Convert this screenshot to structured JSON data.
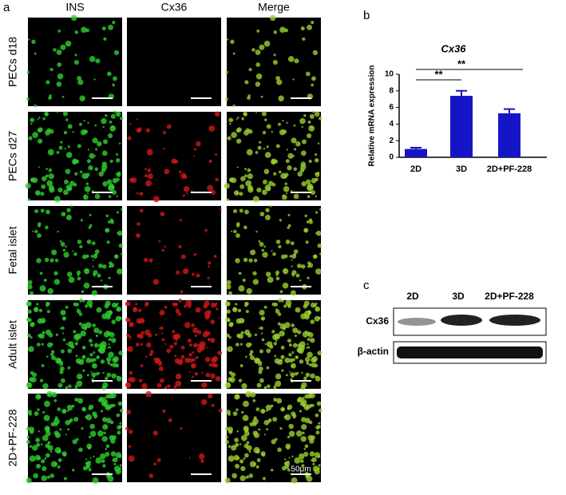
{
  "panel_labels": [
    "a",
    "b",
    "c"
  ],
  "microscopy": {
    "columns": [
      "INS",
      "Cx36",
      "Merge"
    ],
    "rows": [
      "PECs d18",
      "PECs d27",
      "Fetal islet",
      "Adult islet",
      "2D+PF-228"
    ],
    "scale_label": "50μm"
  },
  "chart_data": {
    "type": "bar",
    "title": "Cx36",
    "y_label": "Relative mRNA expression",
    "categories": [
      "2D",
      "3D",
      "2D+PF-228"
    ],
    "values": [
      1.0,
      7.4,
      5.3
    ],
    "errors": [
      0.15,
      0.6,
      0.5
    ],
    "color": "#1515c8",
    "ylim": [
      0,
      10
    ],
    "yticks": [
      0,
      2,
      4,
      6,
      8,
      10
    ],
    "annotations": [
      "**",
      "**"
    ]
  },
  "blot": {
    "columns": [
      "2D",
      "3D",
      "2D+PF-228"
    ],
    "rows": [
      "Cx36",
      "β-actin"
    ]
  }
}
